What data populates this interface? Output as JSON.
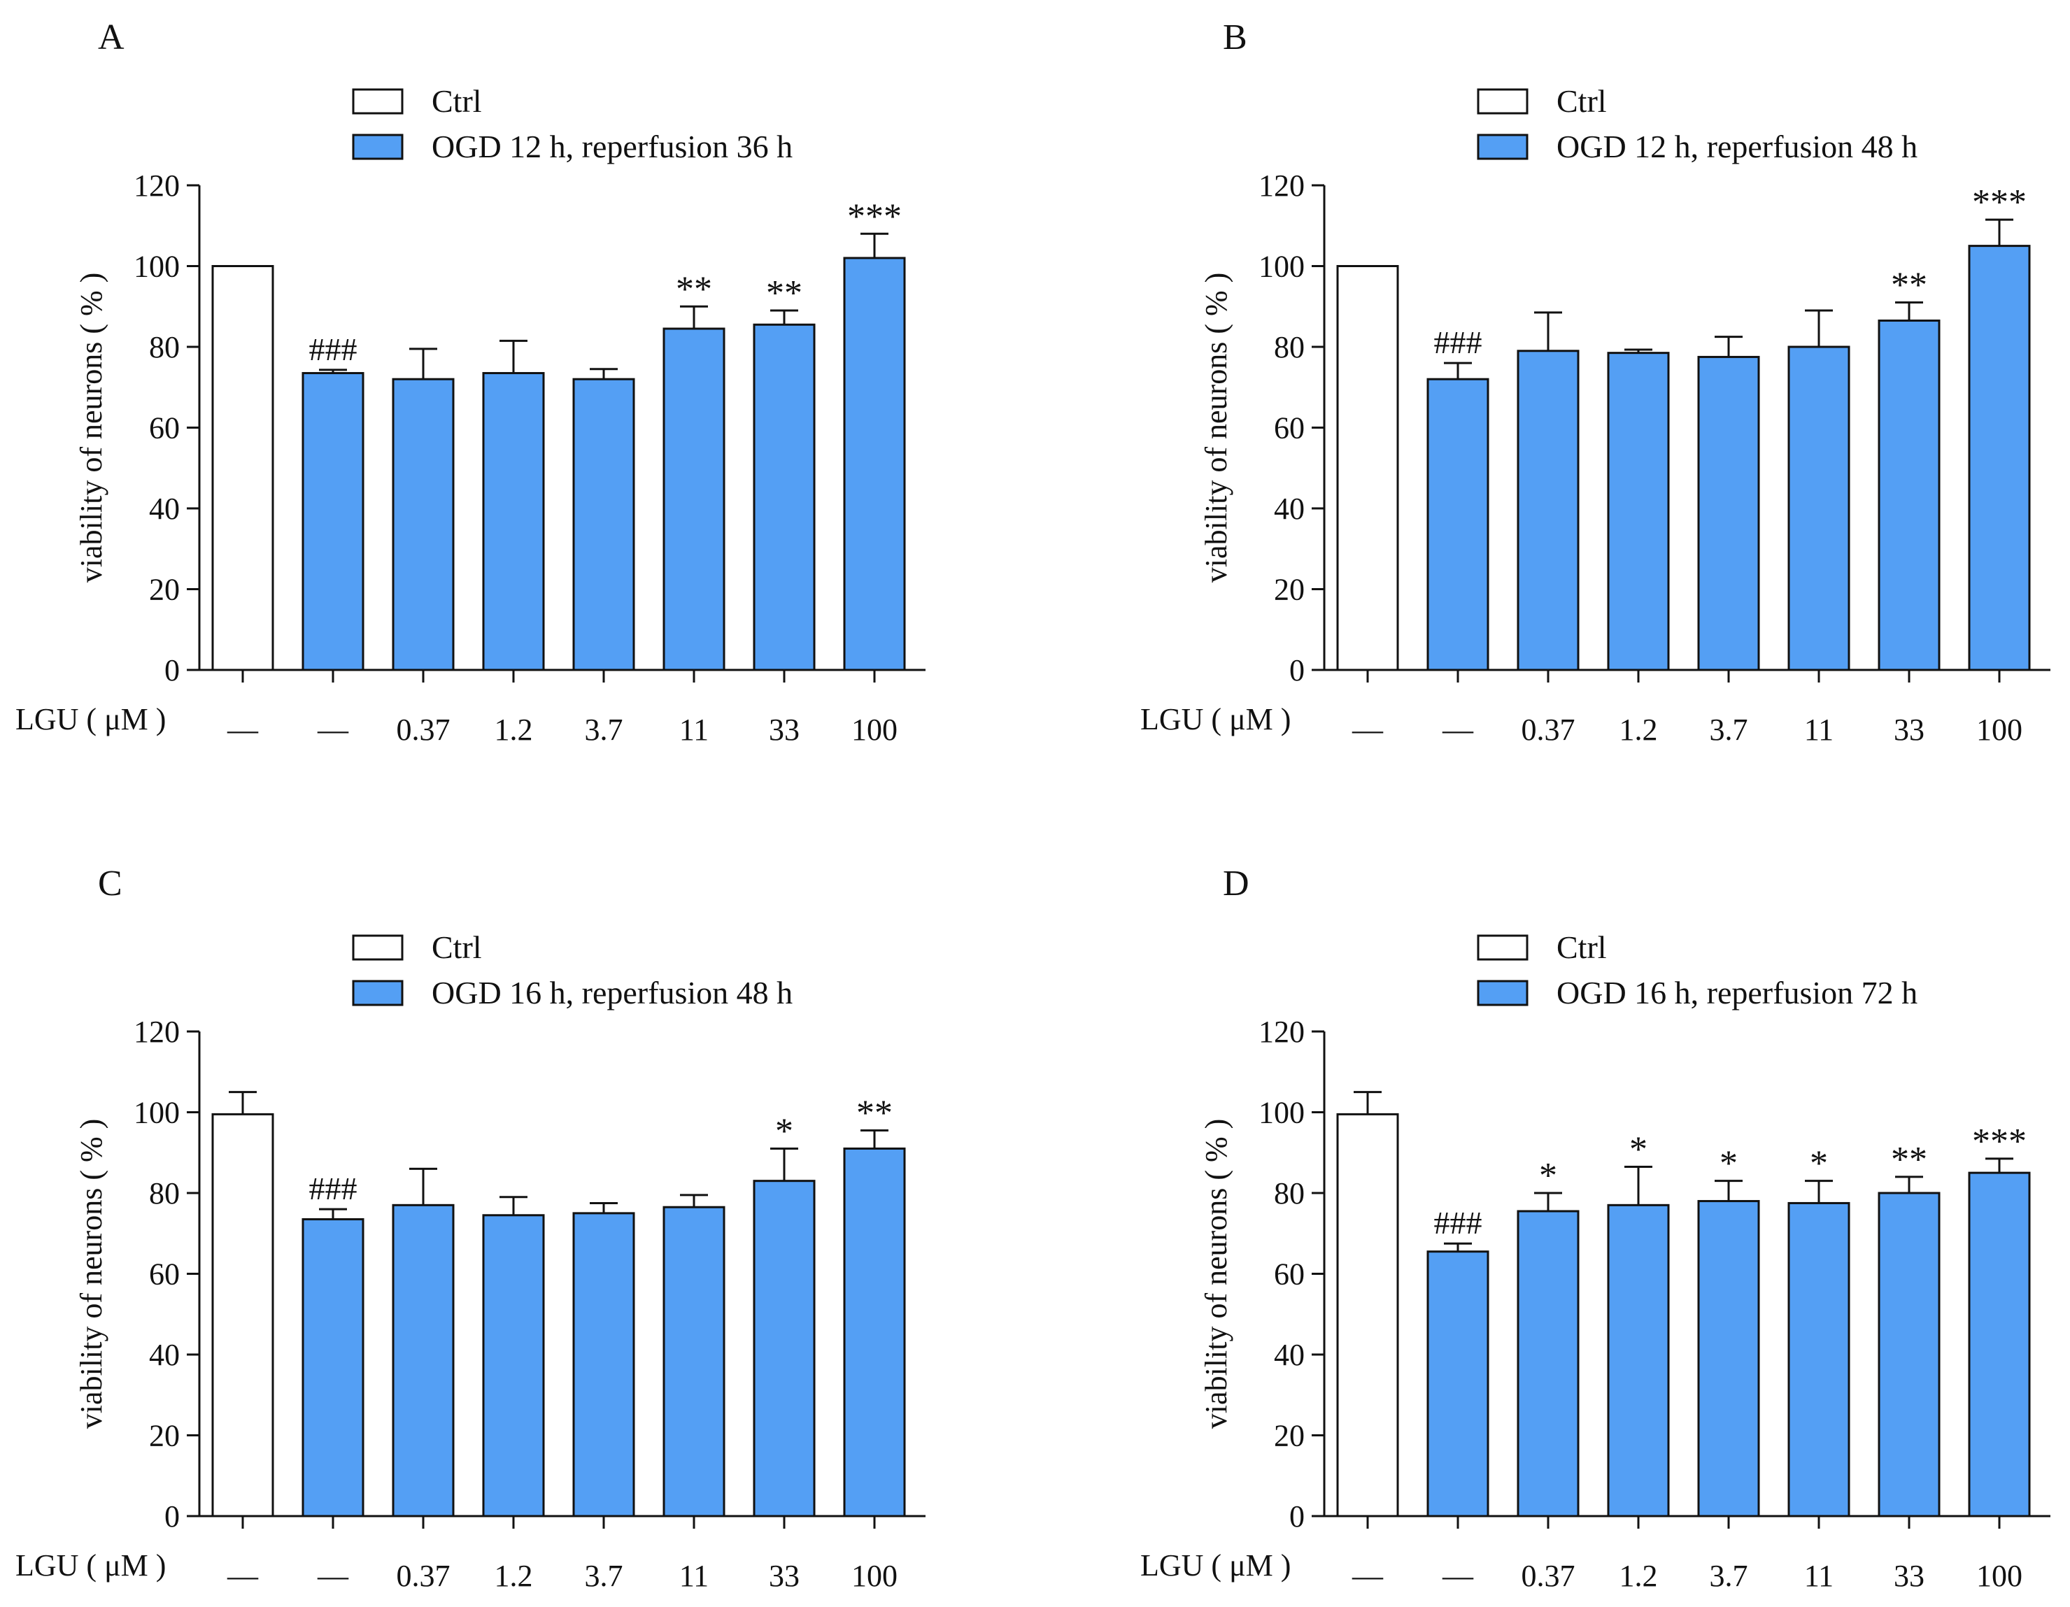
{
  "figure": {
    "x_axis_label": "LGU ( μM )",
    "colors": {
      "ctrl_fill": "#ffffff",
      "treated_fill": "#549ff4",
      "stroke": "#111111"
    }
  },
  "chart_data": [
    {
      "panel": "A",
      "type": "bar",
      "ylabel": "viability of neurons ( % )",
      "ylim": [
        0,
        120
      ],
      "yticks": [
        0,
        20,
        40,
        60,
        80,
        100,
        120
      ],
      "categories": [
        "—",
        "—",
        "0.37",
        "1.2",
        "3.7",
        "11",
        "33",
        "100"
      ],
      "legend": [
        "Ctrl",
        "OGD 12 h,  reperfusion 36 h"
      ],
      "groups": [
        "ctrl",
        "treated",
        "treated",
        "treated",
        "treated",
        "treated",
        "treated",
        "treated"
      ],
      "values": [
        100,
        73.5,
        72,
        73.5,
        72,
        84.5,
        85.5,
        102
      ],
      "errors": [
        0,
        0.8,
        7.5,
        8,
        2.5,
        5.5,
        3.5,
        6
      ],
      "annotations": [
        "",
        "###",
        "",
        "",
        "",
        "**",
        "**",
        "***"
      ]
    },
    {
      "panel": "B",
      "type": "bar",
      "ylabel": "viability of neurons ( % )",
      "ylim": [
        0,
        120
      ],
      "yticks": [
        0,
        20,
        40,
        60,
        80,
        100,
        120
      ],
      "categories": [
        "—",
        "—",
        "0.37",
        "1.2",
        "3.7",
        "11",
        "33",
        "100"
      ],
      "legend": [
        "Ctrl",
        "OGD 12 h, reperfusion 48 h"
      ],
      "groups": [
        "ctrl",
        "treated",
        "treated",
        "treated",
        "treated",
        "treated",
        "treated",
        "treated"
      ],
      "values": [
        100,
        72,
        79,
        78.5,
        77.5,
        80,
        86.5,
        105
      ],
      "errors": [
        0,
        4,
        9.5,
        0.8,
        5,
        9,
        4.5,
        6.5
      ],
      "annotations": [
        "",
        "###",
        "",
        "",
        "",
        "",
        "**",
        "***"
      ]
    },
    {
      "panel": "C",
      "type": "bar",
      "ylabel": "viability of neurons ( % )",
      "ylim": [
        0,
        120
      ],
      "yticks": [
        0,
        20,
        40,
        60,
        80,
        100,
        120
      ],
      "categories": [
        "—",
        "—",
        "0.37",
        "1.2",
        "3.7",
        "11",
        "33",
        "100"
      ],
      "legend": [
        "Ctrl",
        "OGD 16 h, reperfusion 48 h"
      ],
      "groups": [
        "ctrl",
        "treated",
        "treated",
        "treated",
        "treated",
        "treated",
        "treated",
        "treated"
      ],
      "values": [
        99.5,
        73.5,
        77,
        74.5,
        75,
        76.5,
        83,
        91
      ],
      "errors": [
        5.5,
        2.5,
        9,
        4.5,
        2.5,
        3,
        8,
        4.5
      ],
      "annotations": [
        "",
        "###",
        "",
        "",
        "",
        "",
        "*",
        "**"
      ]
    },
    {
      "panel": "D",
      "type": "bar",
      "ylabel": "viability of neurons ( % )",
      "ylim": [
        0,
        120
      ],
      "yticks": [
        0,
        20,
        40,
        60,
        80,
        100,
        120
      ],
      "categories": [
        "—",
        "—",
        "0.37",
        "1.2",
        "3.7",
        "11",
        "33",
        "100"
      ],
      "legend": [
        "Ctrl",
        "OGD 16 h, reperfusion 72 h"
      ],
      "groups": [
        "ctrl",
        "treated",
        "treated",
        "treated",
        "treated",
        "treated",
        "treated",
        "treated"
      ],
      "values": [
        99.5,
        65.5,
        75.5,
        77,
        78,
        77.5,
        80,
        85
      ],
      "errors": [
        5.5,
        2,
        4.5,
        9.5,
        5,
        5.5,
        4,
        3.5
      ],
      "annotations": [
        "",
        "###",
        "*",
        "*",
        "*",
        "*",
        "**",
        "***"
      ]
    }
  ]
}
